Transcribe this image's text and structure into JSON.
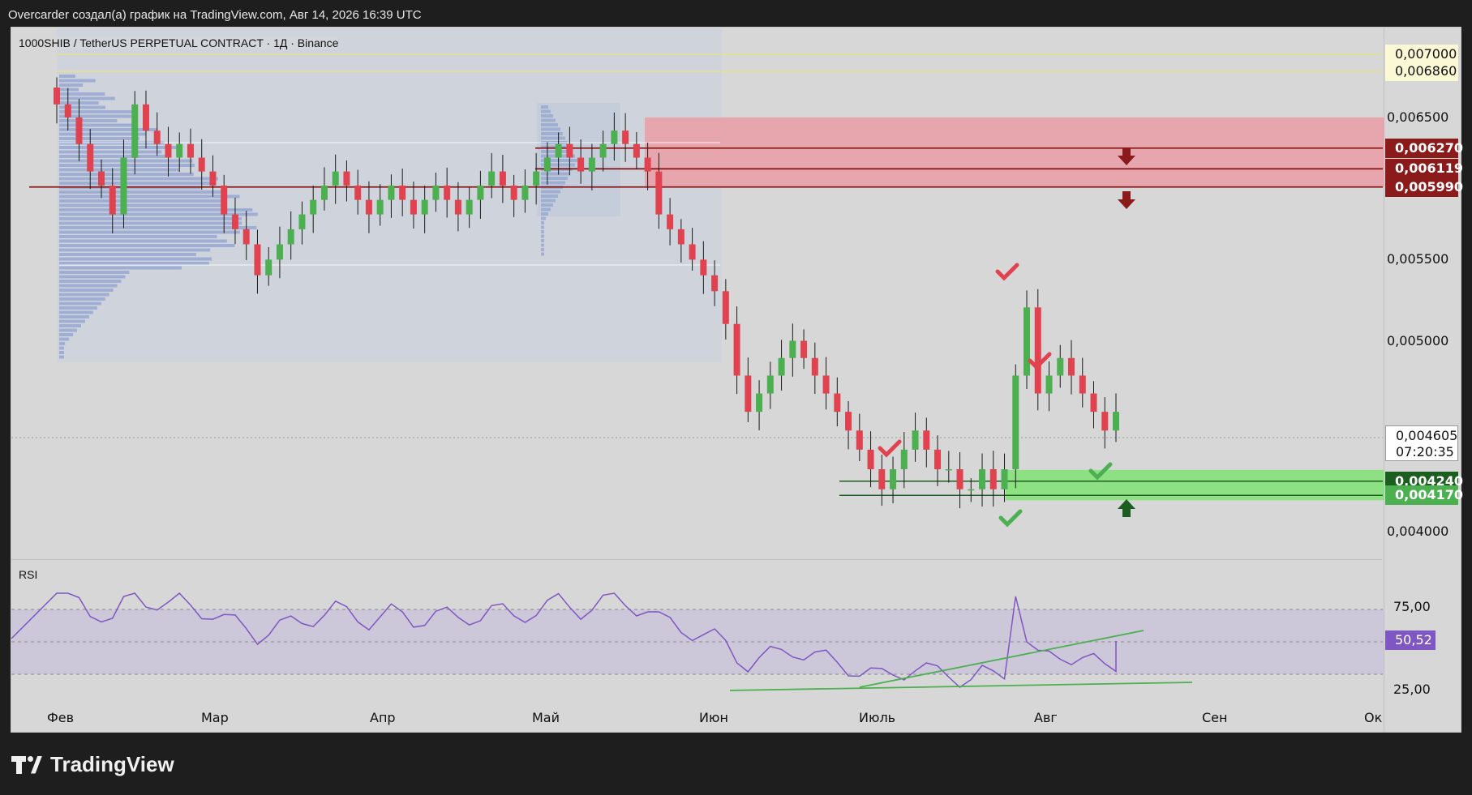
{
  "header": {
    "title": "Overcarder создал(а) график на TradingView.com, Авг 14, 2026 16:39 UTC"
  },
  "symbol": {
    "text": "1000SHIB / TetherUS PERPETUAL CONTRACT · 1Д · Binance"
  },
  "rsi": {
    "label": "RSI",
    "value_tag": "50,52"
  },
  "last_price": {
    "value": "0,004605",
    "countdown": "07:20:35"
  },
  "brand": {
    "name": "TradingView"
  },
  "colors": {
    "up": "#4caf50",
    "down": "#e0434f",
    "resistance": "#8b1a1a",
    "support": "#1b5e20",
    "rsi_line": "#7e57c2",
    "background": "#d7d7d7",
    "page": "#1e1e1e"
  },
  "chart_data": {
    "type": "candlestick",
    "symbol": "1000SHIB / TetherUS PERPETUAL CONTRACT",
    "timeframe": "1Д",
    "exchange": "Binance",
    "x_tick_labels": [
      "Фев",
      "Мар",
      "Апр",
      "Май",
      "Июн",
      "Июль",
      "Авг",
      "Сен",
      "Ок"
    ],
    "y_tick_labels": [
      "0,006500",
      "0,005500",
      "0,005000",
      "0,004000"
    ],
    "ylim": [
      0.0039,
      0.0072
    ],
    "levels": [
      {
        "label": "0,007000",
        "value": 0.007,
        "style": "yellow-line"
      },
      {
        "label": "0,006860",
        "value": 0.00686,
        "style": "yellow-line"
      },
      {
        "label": "0,006270",
        "value": 0.00627,
        "style": "resistance"
      },
      {
        "label": "0,006119",
        "value": 0.006119,
        "style": "resistance"
      },
      {
        "label": "0,005990",
        "value": 0.00599,
        "style": "resistance"
      },
      {
        "label": "0,004240",
        "value": 0.00424,
        "style": "support"
      },
      {
        "label": "0,004170",
        "value": 0.00417,
        "style": "support"
      }
    ],
    "zones": [
      {
        "type": "resistance",
        "from": 0.00599,
        "to": 0.0065
      },
      {
        "type": "support",
        "from": 0.00417,
        "to": 0.00428
      }
    ],
    "series_close": [
      0.0066,
      0.0065,
      0.0063,
      0.0061,
      0.006,
      0.0058,
      0.0062,
      0.0066,
      0.0064,
      0.0063,
      0.0062,
      0.0063,
      0.0062,
      0.0061,
      0.006,
      0.0058,
      0.0057,
      0.0056,
      0.0054,
      0.0055,
      0.0056,
      0.0057,
      0.0058,
      0.0059,
      0.006,
      0.0061,
      0.006,
      0.0059,
      0.0058,
      0.0059,
      0.006,
      0.0059,
      0.0058,
      0.0059,
      0.006,
      0.0059,
      0.0058,
      0.0059,
      0.006,
      0.0061,
      0.006,
      0.0059,
      0.006,
      0.0061,
      0.0062,
      0.0063,
      0.0062,
      0.0061,
      0.0062,
      0.0063,
      0.0064,
      0.0063,
      0.0062,
      0.0061,
      0.0058,
      0.0057,
      0.0056,
      0.0055,
      0.0054,
      0.0053,
      0.0051,
      0.0048,
      0.0046,
      0.0047,
      0.0048,
      0.0049,
      0.005,
      0.0049,
      0.0048,
      0.0047,
      0.0046,
      0.0045,
      0.0044,
      0.0043,
      0.0042,
      0.0043,
      0.0044,
      0.0045,
      0.0044,
      0.0043,
      0.0043,
      0.0042,
      0.0042,
      0.0043,
      0.0042,
      0.0043,
      0.0048,
      0.0052,
      0.0047,
      0.0048,
      0.0049,
      0.0048,
      0.0047,
      0.0046,
      0.0045,
      0.0046
    ],
    "rsi": {
      "y_tick_labels": [
        "75,00",
        "25,00"
      ],
      "current": 50.52,
      "overbought": 70,
      "oversold": 30
    }
  }
}
